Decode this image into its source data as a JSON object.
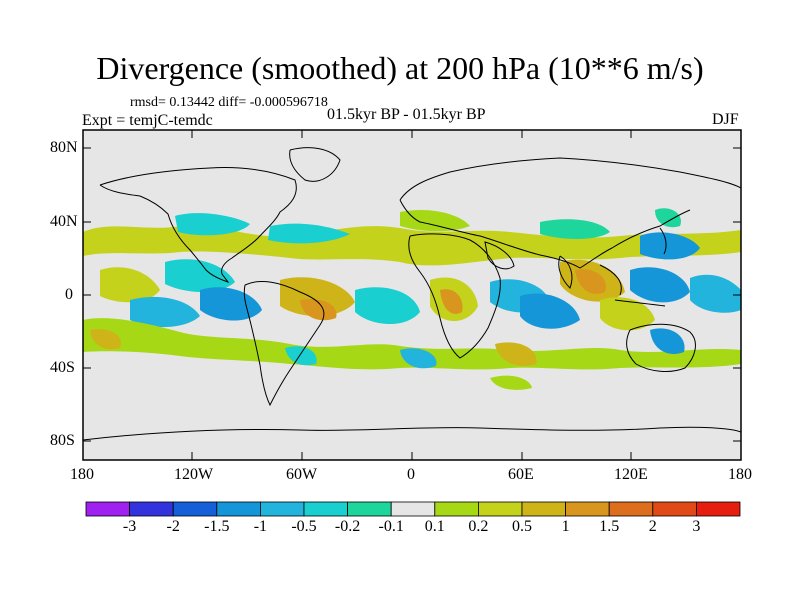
{
  "title": "Divergence (smoothed) at 200 hPa (10**6 m/s)",
  "stats": {
    "rmsd_label": "rmsd= 0.13442  diff= -0.000596718"
  },
  "experiment": "Expt = temjC-temdc",
  "period": "01.5kyr BP - 01.5kyr BP",
  "season": "DJF",
  "map": {
    "y_ticks": [
      "80N",
      "40N",
      "0",
      "40S",
      "80S"
    ],
    "x_ticks": [
      "180",
      "120W",
      "60W",
      "0",
      "60E",
      "120E",
      "180"
    ],
    "ocean_color": "#e6e6e6",
    "coast_color": "#000000"
  },
  "colorbar": {
    "labels": [
      "-3",
      "-2",
      "-1.5",
      "-1",
      "-0.5",
      "-0.2",
      "-0.1",
      "0.1",
      "0.2",
      "0.5",
      "1",
      "1.5",
      "2",
      "3"
    ],
    "colors": [
      "#a020f0",
      "#3333dd",
      "#1560d8",
      "#1496d8",
      "#22b4dc",
      "#19cfd0",
      "#1ed69b",
      "#e6e6e6",
      "#a6d816",
      "#c4d21c",
      "#cfb419",
      "#d9961e",
      "#dc6e1e",
      "#e04a16",
      "#e61e10"
    ]
  }
}
